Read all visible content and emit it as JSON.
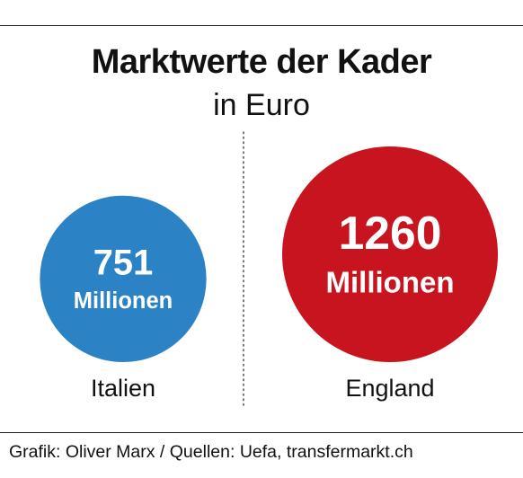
{
  "title": "Marktwerte der Kader",
  "subtitle": "in Euro",
  "source": "Grafik: Oliver Marx / Quellen: Uefa, transfermarkt.ch",
  "colors": {
    "italy": "#2b83c6",
    "england": "#c8141e",
    "divider": "#555555"
  },
  "chart_data": {
    "type": "bubble",
    "title": "Marktwerte der Kader",
    "subtitle": "in Euro",
    "unit": "Millionen",
    "series": [
      {
        "label": "Italien",
        "value": 751,
        "value_text": "751",
        "unit_text": "Millionen",
        "color": "#2b83c6"
      },
      {
        "label": "England",
        "value": 1260,
        "value_text": "1260",
        "unit_text": "Millionen",
        "color": "#c8141e"
      }
    ]
  }
}
